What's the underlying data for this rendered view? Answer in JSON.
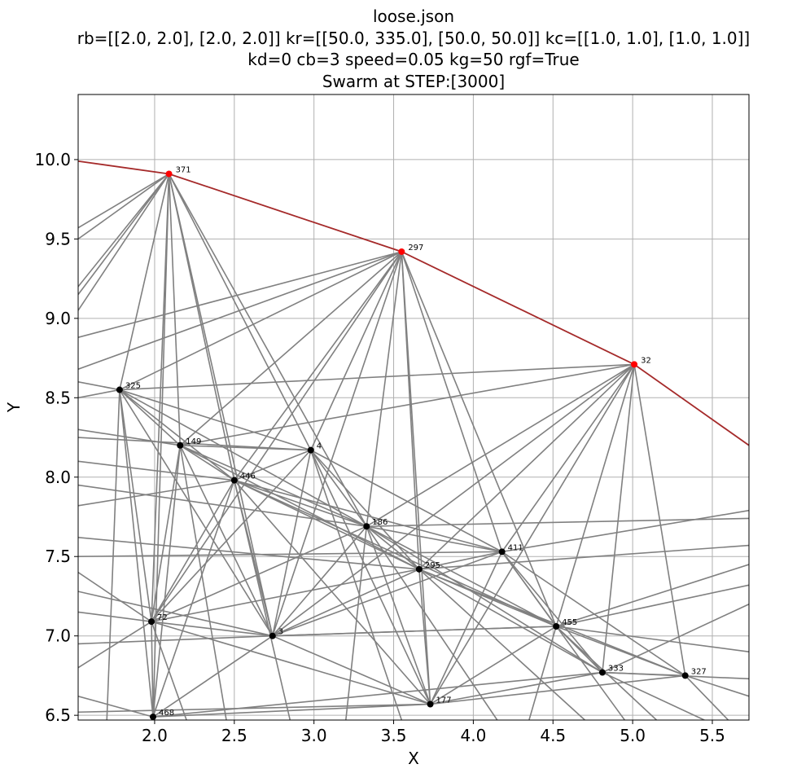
{
  "chart_data": {
    "type": "scatter",
    "title_lines": [
      "loose.json",
      "rb=[[2.0, 2.0], [2.0, 2.0]] kr=[[50.0, 335.0], [50.0, 50.0]] kc=[[1.0, 1.0], [1.0, 1.0]]",
      "kd=0 cb=3 speed=0.05 kg=50 rgf=True",
      "Swarm at STEP:[3000]"
    ],
    "xlabel": "X",
    "ylabel": "Y",
    "xlim": [
      1.52,
      5.73
    ],
    "ylim": [
      6.47,
      10.41
    ],
    "grid": true,
    "xticks": [
      "2.0",
      "2.5",
      "3.0",
      "3.5",
      "4.0",
      "4.5",
      "5.0",
      "5.5"
    ],
    "yticks": [
      "6.5",
      "7.0",
      "7.5",
      "8.0",
      "8.5",
      "9.0",
      "9.5",
      "10.0"
    ],
    "colors": {
      "edge": "#808080",
      "boundary": "#a52a2a",
      "node": "#000000",
      "perimeter_node": "#ff0000",
      "grid": "#b0b0b0"
    },
    "perimeter_nodes": [
      {
        "id": "371",
        "x": 2.09,
        "y": 9.91
      },
      {
        "id": "297",
        "x": 3.55,
        "y": 9.42
      },
      {
        "id": "32",
        "x": 5.01,
        "y": 8.71
      }
    ],
    "boundary_line": [
      [
        1.52,
        9.99
      ],
      [
        2.09,
        9.91
      ],
      [
        3.55,
        9.42
      ],
      [
        5.01,
        8.71
      ],
      [
        5.73,
        8.2
      ]
    ],
    "nodes": [
      {
        "id": "325",
        "x": 1.78,
        "y": 8.55
      },
      {
        "id": "149",
        "x": 2.16,
        "y": 8.2
      },
      {
        "id": "4",
        "x": 2.98,
        "y": 8.17
      },
      {
        "id": "446",
        "x": 2.5,
        "y": 7.98
      },
      {
        "id": "186",
        "x": 3.33,
        "y": 7.69
      },
      {
        "id": "411",
        "x": 4.18,
        "y": 7.53
      },
      {
        "id": "295",
        "x": 3.66,
        "y": 7.42
      },
      {
        "id": "72",
        "x": 1.98,
        "y": 7.09
      },
      {
        "id": "455",
        "x": 4.52,
        "y": 7.06
      },
      {
        "id": "3",
        "x": 2.74,
        "y": 7.0
      },
      {
        "id": "333",
        "x": 4.81,
        "y": 6.77
      },
      {
        "id": "327",
        "x": 5.33,
        "y": 6.75
      },
      {
        "id": "177",
        "x": 3.73,
        "y": 6.57
      },
      {
        "id": "468",
        "x": 1.99,
        "y": 6.49
      }
    ],
    "edges": [
      [
        "371",
        "325"
      ],
      [
        "371",
        "149"
      ],
      [
        "371",
        "446"
      ],
      [
        "371",
        "4"
      ],
      [
        "371",
        "186"
      ],
      [
        "371",
        "72"
      ],
      [
        "371",
        "3"
      ],
      [
        "371",
        "468"
      ],
      [
        "297",
        "325"
      ],
      [
        "297",
        "149"
      ],
      [
        "297",
        "446"
      ],
      [
        "297",
        "4"
      ],
      [
        "297",
        "186"
      ],
      [
        "297",
        "295"
      ],
      [
        "297",
        "411"
      ],
      [
        "297",
        "455"
      ],
      [
        "297",
        "3"
      ],
      [
        "297",
        "177"
      ],
      [
        "297",
        "72"
      ],
      [
        "32",
        "325"
      ],
      [
        "32",
        "149"
      ],
      [
        "32",
        "186"
      ],
      [
        "32",
        "295"
      ],
      [
        "32",
        "411"
      ],
      [
        "32",
        "455"
      ],
      [
        "32",
        "333"
      ],
      [
        "32",
        "327"
      ],
      [
        "32",
        "177"
      ],
      [
        "32",
        "3"
      ],
      [
        "325",
        "149"
      ],
      [
        "325",
        "446"
      ],
      [
        "325",
        "4"
      ],
      [
        "325",
        "72"
      ],
      [
        "325",
        "3"
      ],
      [
        "325",
        "468"
      ],
      [
        "325",
        "186"
      ],
      [
        "149",
        "446"
      ],
      [
        "149",
        "4"
      ],
      [
        "149",
        "186"
      ],
      [
        "149",
        "72"
      ],
      [
        "149",
        "3"
      ],
      [
        "149",
        "468"
      ],
      [
        "149",
        "295"
      ],
      [
        "4",
        "446"
      ],
      [
        "4",
        "186"
      ],
      [
        "4",
        "295"
      ],
      [
        "4",
        "3"
      ],
      [
        "4",
        "72"
      ],
      [
        "4",
        "177"
      ],
      [
        "4",
        "411"
      ],
      [
        "446",
        "186"
      ],
      [
        "446",
        "295"
      ],
      [
        "446",
        "3"
      ],
      [
        "446",
        "72"
      ],
      [
        "446",
        "468"
      ],
      [
        "446",
        "411"
      ],
      [
        "446",
        "455"
      ],
      [
        "446",
        "177"
      ],
      [
        "186",
        "295"
      ],
      [
        "186",
        "411"
      ],
      [
        "186",
        "455"
      ],
      [
        "186",
        "3"
      ],
      [
        "186",
        "177"
      ],
      [
        "186",
        "72"
      ],
      [
        "186",
        "333"
      ],
      [
        "295",
        "411"
      ],
      [
        "295",
        "455"
      ],
      [
        "295",
        "333"
      ],
      [
        "295",
        "327"
      ],
      [
        "295",
        "177"
      ],
      [
        "295",
        "3"
      ],
      [
        "295",
        "72"
      ],
      [
        "411",
        "455"
      ],
      [
        "411",
        "333"
      ],
      [
        "411",
        "327"
      ],
      [
        "411",
        "177"
      ],
      [
        "411",
        "3"
      ],
      [
        "455",
        "333"
      ],
      [
        "455",
        "327"
      ],
      [
        "455",
        "177"
      ],
      [
        "455",
        "3"
      ],
      [
        "333",
        "327"
      ],
      [
        "333",
        "177"
      ],
      [
        "327",
        "177"
      ],
      [
        "72",
        "3"
      ],
      [
        "72",
        "468"
      ],
      [
        "72",
        "177"
      ],
      [
        "3",
        "468"
      ],
      [
        "3",
        "177"
      ],
      [
        "3",
        "455"
      ],
      [
        "468",
        "177"
      ],
      [
        "468",
        "333"
      ]
    ],
    "offscreen_edges": [
      [
        [
          1.52,
          9.57
        ],
        "371"
      ],
      [
        [
          1.52,
          9.5
        ],
        "371"
      ],
      [
        [
          1.52,
          9.2
        ],
        "371"
      ],
      [
        [
          1.52,
          9.15
        ],
        "371"
      ],
      [
        [
          1.52,
          9.05
        ],
        "371"
      ],
      [
        [
          1.52,
          8.88
        ],
        "297"
      ],
      [
        [
          1.52,
          8.68
        ],
        "297"
      ],
      [
        [
          1.52,
          8.6
        ],
        "325"
      ],
      [
        [
          1.52,
          8.5
        ],
        "325"
      ],
      [
        [
          1.52,
          8.3
        ],
        "149"
      ],
      [
        [
          1.52,
          8.25
        ],
        "4"
      ],
      [
        [
          1.52,
          8.1
        ],
        "446"
      ],
      [
        [
          1.52,
          7.95
        ],
        "186"
      ],
      [
        [
          1.52,
          7.82
        ],
        "446"
      ],
      [
        [
          1.52,
          7.62
        ],
        "295"
      ],
      [
        [
          1.52,
          7.5
        ],
        "411"
      ],
      [
        [
          1.52,
          7.4
        ],
        "72"
      ],
      [
        [
          1.52,
          7.28
        ],
        "3"
      ],
      [
        [
          1.52,
          7.15
        ],
        "72"
      ],
      [
        [
          1.52,
          6.95
        ],
        "3"
      ],
      [
        [
          1.52,
          6.8
        ],
        "72"
      ],
      [
        [
          1.52,
          6.62
        ],
        "468"
      ],
      [
        [
          1.52,
          6.52
        ],
        "177"
      ],
      [
        [
          5.73,
          7.79
        ],
        "411"
      ],
      [
        [
          5.73,
          7.74
        ],
        "186"
      ],
      [
        [
          5.73,
          7.57
        ],
        "295"
      ],
      [
        [
          5.73,
          7.45
        ],
        "455"
      ],
      [
        [
          5.73,
          7.32
        ],
        "455"
      ],
      [
        [
          5.73,
          7.2
        ],
        "333"
      ],
      [
        [
          5.73,
          6.9
        ],
        "455"
      ],
      [
        [
          5.73,
          6.73
        ],
        "333"
      ],
      [
        [
          5.73,
          6.62
        ],
        "327"
      ],
      [
        [
          5.6,
          6.47
        ],
        "327"
      ],
      [
        [
          5.45,
          6.47
        ],
        "333"
      ],
      [
        [
          5.15,
          6.47
        ],
        "455"
      ],
      [
        [
          4.95,
          6.47
        ],
        "411"
      ],
      [
        [
          4.7,
          6.47
        ],
        "295"
      ],
      [
        [
          4.35,
          6.47
        ],
        "455"
      ],
      [
        [
          4.15,
          6.47
        ],
        "186"
      ],
      [
        [
          3.55,
          6.47
        ],
        "4"
      ],
      [
        [
          3.2,
          6.47
        ],
        "186"
      ],
      [
        [
          2.85,
          6.47
        ],
        "446"
      ],
      [
        [
          2.45,
          6.47
        ],
        "149"
      ],
      [
        [
          2.2,
          6.47
        ],
        "72"
      ],
      [
        [
          1.7,
          6.47
        ],
        "325"
      ]
    ]
  }
}
